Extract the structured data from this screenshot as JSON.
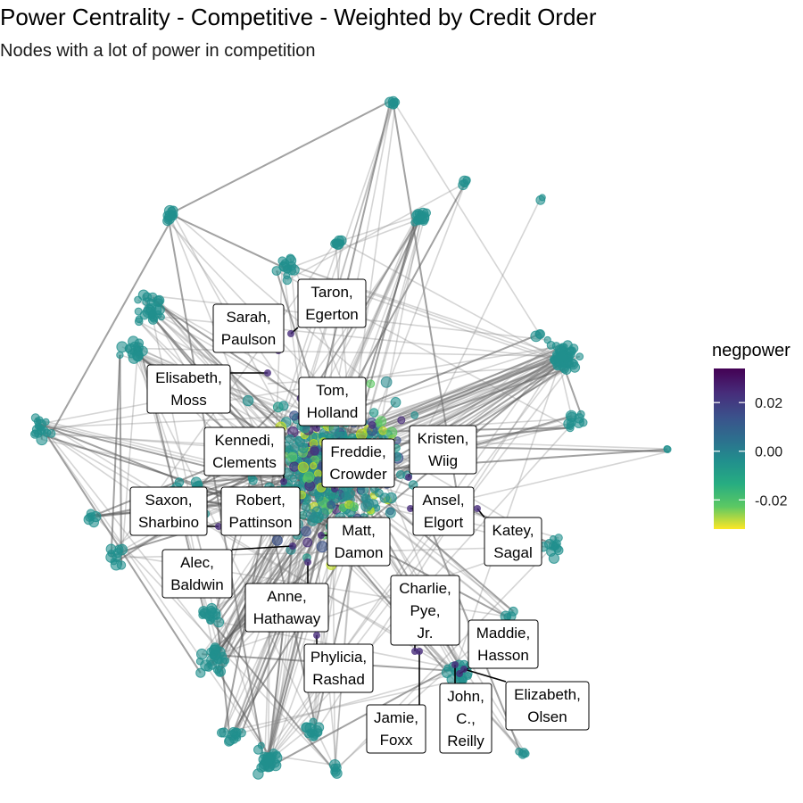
{
  "title": "Power Centrality - Competitive - Weighted by Credit Order",
  "subtitle": "Nodes with a lot of power in competition",
  "chart_data": {
    "type": "network",
    "legend": {
      "title": "negpower",
      "position": "right",
      "range": [
        -0.032,
        0.034
      ],
      "breaks": [
        0.02,
        0.0,
        -0.02
      ],
      "break_labels": [
        "0.02",
        "0.00",
        "-0.02"
      ],
      "colormap": "viridis (reversed)"
    },
    "labeled_nodes": [
      {
        "label": "Taron, Egerton",
        "lines": [
          "Taron,",
          "Egerton"
        ]
      },
      {
        "label": "Sarah, Paulson",
        "lines": [
          "Sarah,",
          "Paulson"
        ]
      },
      {
        "label": "Elisabeth, Moss",
        "lines": [
          "Elisabeth,",
          "Moss"
        ]
      },
      {
        "label": "Tom, Holland",
        "lines": [
          "Tom,",
          "Holland"
        ]
      },
      {
        "label": "Kennedi, Clements",
        "lines": [
          "Kennedi,",
          "Clements"
        ]
      },
      {
        "label": "Freddie, Crowder",
        "lines": [
          "Freddie,",
          "Crowder"
        ]
      },
      {
        "label": "Kristen, Wiig",
        "lines": [
          "Kristen,",
          "Wiig"
        ]
      },
      {
        "label": "Saxon, Sharbino",
        "lines": [
          "Saxon,",
          "Sharbino"
        ]
      },
      {
        "label": "Robert, Pattinson",
        "lines": [
          "Robert,",
          "Pattinson"
        ]
      },
      {
        "label": "Ansel, Elgort",
        "lines": [
          "Ansel,",
          "Elgort"
        ]
      },
      {
        "label": "Katey, Sagal",
        "lines": [
          "Katey,",
          "Sagal"
        ]
      },
      {
        "label": "Matt, Damon",
        "lines": [
          "Matt,",
          "Damon"
        ]
      },
      {
        "label": "Alec, Baldwin",
        "lines": [
          "Alec,",
          "Baldwin"
        ]
      },
      {
        "label": "Anne, Hathaway",
        "lines": [
          "Anne,",
          "Hathaway"
        ]
      },
      {
        "label": "Charlie, Pye, Jr.",
        "lines": [
          "Charlie,",
          "Pye,",
          "Jr."
        ]
      },
      {
        "label": "Maddie, Hasson",
        "lines": [
          "Maddie,",
          "Hasson"
        ]
      },
      {
        "label": "Phylicia, Rashad",
        "lines": [
          "Phylicia,",
          "Rashad"
        ]
      },
      {
        "label": "John, C., Reilly",
        "lines": [
          "John,",
          "C.,",
          "Reilly"
        ]
      },
      {
        "label": "Elizabeth, Olsen",
        "lines": [
          "Elizabeth,",
          "Olsen"
        ]
      },
      {
        "label": "Jamie, Foxx",
        "lines": [
          "Jamie,",
          "Foxx"
        ]
      }
    ]
  }
}
